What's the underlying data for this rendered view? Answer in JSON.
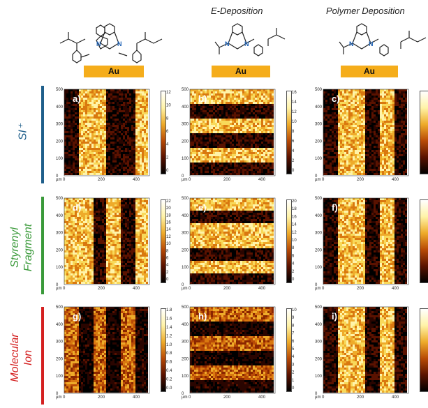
{
  "columns": [
    {
      "title": ""
    },
    {
      "title": "E-Deposition"
    },
    {
      "title": "Polymer Deposition"
    }
  ],
  "substrate_label": "Au",
  "rows": [
    {
      "label": "SI⁺",
      "color": "#1f5f8b"
    },
    {
      "label": "Styrenyl Fragment",
      "label_lines": [
        "Styrenyl",
        "Fragment"
      ],
      "color": "#3a9a3a"
    },
    {
      "label": "Molecular Ion",
      "label_lines": [
        "Molecular",
        "Ion"
      ],
      "color": "#d42020"
    }
  ],
  "axis": {
    "unit": "µm",
    "x_ticks": [
      "0",
      "200",
      "400"
    ],
    "y_ticks": [
      "0",
      "100",
      "200",
      "300",
      "400",
      "500"
    ]
  },
  "panels": [
    {
      "label": "a)",
      "orientation": "vertical",
      "pattern": [
        0,
        1,
        1,
        0,
        0,
        1
      ],
      "colorbar_ticks": [
        "12",
        "10",
        "8",
        "6",
        "4",
        "2",
        "0"
      ]
    },
    {
      "label": "b)",
      "orientation": "horizontal",
      "pattern": [
        1,
        0,
        1,
        0,
        1,
        0
      ],
      "colorbar_ticks": [
        "16",
        "14",
        "12",
        "10",
        "8",
        "6",
        "4",
        "2",
        "0"
      ]
    },
    {
      "label": "c)",
      "orientation": "vertical",
      "pattern": [
        0,
        1,
        1,
        0,
        1,
        0
      ],
      "colorbar_ticks": []
    },
    {
      "label": "d)",
      "orientation": "vertical",
      "pattern": [
        1,
        1,
        0,
        1,
        0,
        1
      ],
      "colorbar_ticks": [
        "22",
        "20",
        "18",
        "16",
        "14",
        "12",
        "10",
        "8",
        "6",
        "4",
        "2",
        "0"
      ]
    },
    {
      "label": "e)",
      "orientation": "horizontal",
      "pattern": [
        1,
        0,
        1,
        1,
        0,
        1,
        0
      ],
      "colorbar_ticks": [
        "20",
        "18",
        "16",
        "14",
        "12",
        "10",
        "8",
        "6",
        "4",
        "2",
        "0"
      ]
    },
    {
      "label": "f)",
      "orientation": "vertical",
      "pattern": [
        0,
        1,
        1,
        0,
        1,
        0
      ],
      "colorbar_ticks": []
    },
    {
      "label": "g)",
      "orientation": "vertical",
      "pattern": [
        1,
        0,
        1,
        0,
        1,
        0
      ],
      "colorbar_ticks": [
        "1.8",
        "1.6",
        "1.4",
        "1.2",
        "1.0",
        "0.8",
        "0.6",
        "0.4",
        "0.2",
        "0.0"
      ]
    },
    {
      "label": "h)",
      "orientation": "horizontal",
      "pattern": [
        1,
        0,
        1,
        0,
        1,
        0
      ],
      "colorbar_ticks": [
        "10",
        "9",
        "8",
        "7",
        "6",
        "5",
        "4",
        "3",
        "2",
        "1",
        "0"
      ]
    },
    {
      "label": "i)",
      "orientation": "vertical",
      "pattern": [
        0,
        1,
        1,
        0,
        1,
        0
      ],
      "colorbar_ticks": []
    }
  ]
}
